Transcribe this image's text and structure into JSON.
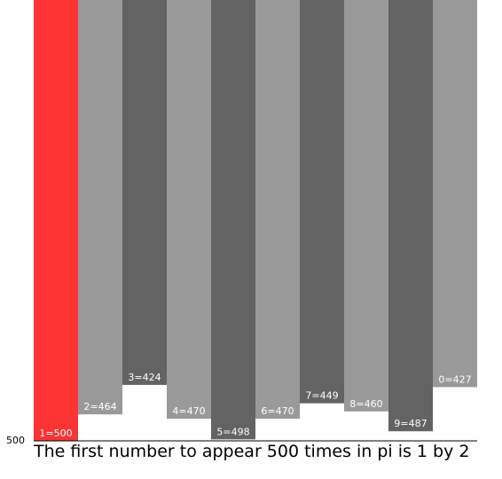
{
  "chart_data": {
    "type": "bar",
    "title": "The first number to appear 500 times in pi is 1 by 2",
    "categories": [
      "1",
      "2",
      "3",
      "4",
      "5",
      "6",
      "7",
      "8",
      "9",
      "0"
    ],
    "values": [
      500,
      464,
      424,
      470,
      498,
      470,
      449,
      460,
      487,
      427
    ],
    "bar_labels": [
      "1=500",
      "2=464",
      "3=424",
      "4=470",
      "5=498",
      "6=470",
      "7=449",
      "8=460",
      "9=487",
      "0=427"
    ],
    "ylim": [
      0,
      500
    ],
    "y_tick_label": "500",
    "highlight_index": 0,
    "colors": {
      "highlight": "#fb3333",
      "light": "#999999",
      "dark": "#636363",
      "axis": "#000000"
    }
  }
}
